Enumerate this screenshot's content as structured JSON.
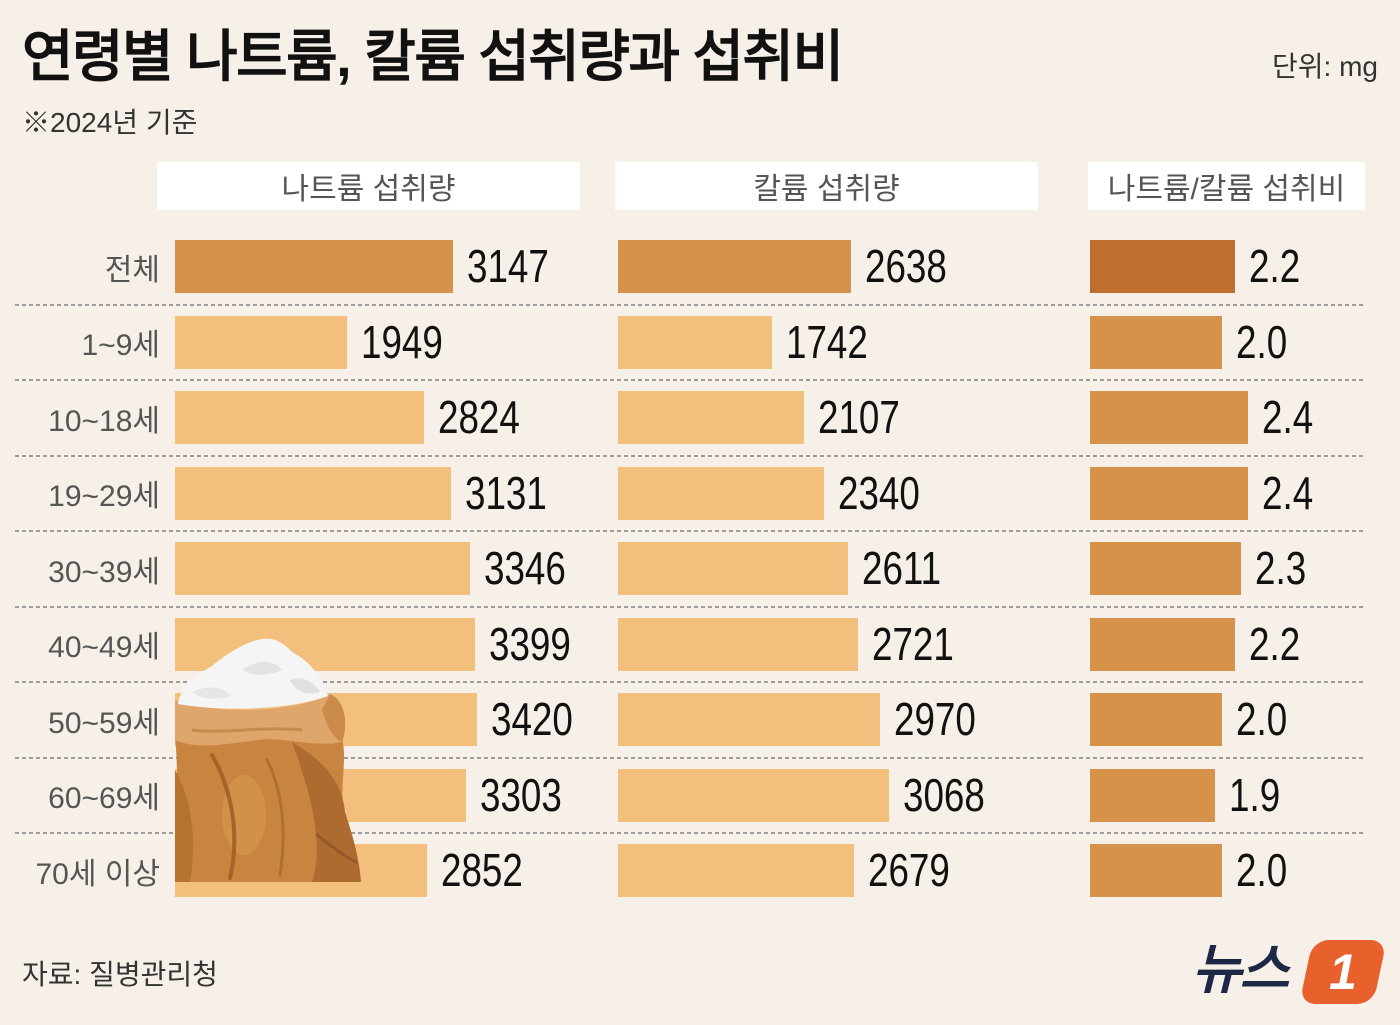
{
  "title": "연령별 나트륨, 칼륨 섭취량과 섭취비",
  "subtitle": "※2024년 기준",
  "unit": "단위: mg",
  "source": "자료: 질병관리청",
  "logo": {
    "text": "뉴스",
    "badge": "1"
  },
  "illustration": {
    "icon": "salt-sack-icon"
  },
  "colors": {
    "background": "#f6f0e8",
    "header_box": "#ffffff",
    "title_text": "#111111",
    "label_text": "#555555",
    "value_text": "#111111",
    "separator": "#9c9c9c",
    "logo_text": "#1d2847",
    "logo_badge": "#e8612c"
  },
  "chart_data": {
    "type": "bar",
    "orientation": "horizontal",
    "grid": false,
    "legend": "none",
    "categories": [
      "전체",
      "1~9세",
      "10~18세",
      "19~29세",
      "30~39세",
      "40~49세",
      "50~59세",
      "60~69세",
      "70세 이상"
    ],
    "series": [
      {
        "name": "나트륨 섭취량",
        "values": [
          3147,
          1949,
          2824,
          3131,
          3346,
          3399,
          3420,
          3303,
          2852
        ],
        "color": "#f2c07c",
        "highlight_color": "#d6914a"
      },
      {
        "name": "칼륨 섭취량",
        "values": [
          2638,
          1742,
          2107,
          2340,
          2611,
          2721,
          2970,
          3068,
          2679
        ],
        "color": "#f2c07c",
        "highlight_color": "#d6914a"
      },
      {
        "name": "나트륨/칼륨 섭취비",
        "values": [
          2.2,
          2.0,
          2.4,
          2.4,
          2.3,
          2.2,
          2.0,
          1.9,
          2.0
        ],
        "labels": [
          "2.2",
          "2.0",
          "2.4",
          "2.4",
          "2.3",
          "2.2",
          "2.0",
          "1.9",
          "2.0"
        ],
        "color": "#d6914a",
        "highlight_color": "#bf6e2f"
      }
    ]
  }
}
